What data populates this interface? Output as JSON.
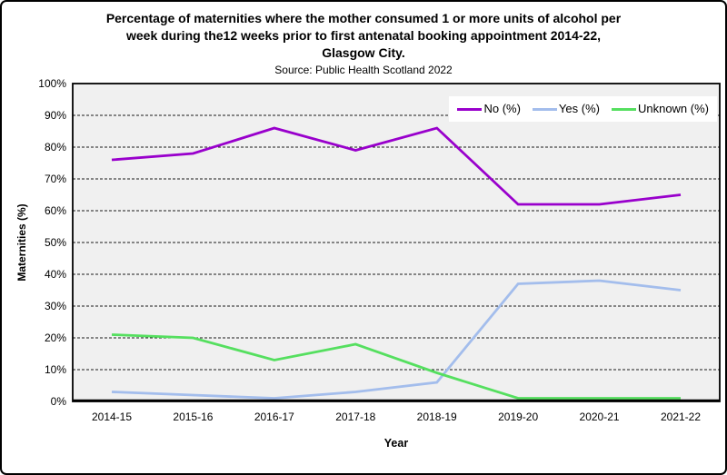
{
  "header": {
    "title_line1": "Percentage of maternities where the mother consumed 1 or more units of alcohol per",
    "title_line2": "week during the12 weeks prior to first antenatal booking appointment 2014-22,",
    "title_line3": "Glasgow City.",
    "subtitle": "Source: Public Health Scotland 2022"
  },
  "axes": {
    "y_label": "Maternities (%)",
    "x_label": "Year",
    "y_ticks": [
      "0%",
      "10%",
      "20%",
      "30%",
      "40%",
      "50%",
      "60%",
      "70%",
      "80%",
      "90%",
      "100%"
    ]
  },
  "colors": {
    "plot_background": "#f0f0f0",
    "grid_line": "#1a1a1a",
    "axis_border": "#000000",
    "frame_border": "#000000"
  },
  "chart_data": {
    "type": "line",
    "title": "Percentage of maternities where the mother consumed 1 or more units of alcohol per week during the12 weeks prior to first antenatal booking appointment 2014-22, Glasgow City.",
    "subtitle": "Source: Public Health Scotland 2022",
    "xlabel": "Year",
    "ylabel": "Maternities (%)",
    "categories": [
      "2014-15",
      "2015-16",
      "2016-17",
      "2017-18",
      "2018-19",
      "2019-20",
      "2020-21",
      "2021-22"
    ],
    "series": [
      {
        "name": "No (%)",
        "color": "#9900cc",
        "values": [
          76,
          78,
          86,
          79,
          86,
          62,
          62,
          65
        ]
      },
      {
        "name": "Yes (%)",
        "color": "#a3bdec",
        "values": [
          3,
          2,
          1,
          3,
          6,
          37,
          38,
          35
        ]
      },
      {
        "name": "Unknown (%)",
        "color": "#55df5f",
        "values": [
          21,
          20,
          13,
          18,
          9,
          1,
          1,
          1
        ]
      }
    ],
    "ylim": [
      0,
      100
    ],
    "ytick_step": 10,
    "grid": "horizontal-dashed",
    "legend_position": "top-right"
  }
}
